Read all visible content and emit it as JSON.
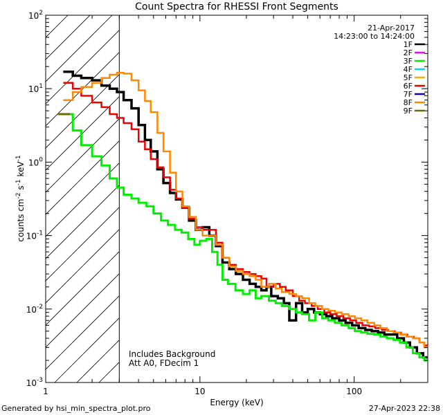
{
  "chart_data": {
    "type": "line",
    "title": "Count Spectra for RHESSI Front Segments",
    "xlabel": "Energy (keV)",
    "ylabel_parts": {
      "a": "counts cm",
      "b": "-2",
      "c": " s",
      "d": "-1",
      "e": " keV",
      "f": "-1"
    },
    "xscale": "log",
    "yscale": "log",
    "xlim": [
      1,
      300
    ],
    "ylim": [
      0.001,
      100
    ],
    "x_ticks": [
      {
        "value": 1,
        "label": "1"
      },
      {
        "value": 10,
        "label": "10"
      },
      {
        "value": 100,
        "label": "100"
      }
    ],
    "y_ticks": [
      {
        "value": 100,
        "base": "10",
        "exp": "2"
      },
      {
        "value": 10,
        "base": "10",
        "exp": "1"
      },
      {
        "value": 1,
        "base": "10",
        "exp": "0"
      },
      {
        "value": 0.1,
        "base": "10",
        "exp": "-1"
      },
      {
        "value": 0.01,
        "base": "10",
        "exp": "-2"
      },
      {
        "value": 0.001,
        "base": "10",
        "exp": "-3"
      }
    ],
    "date": "21-Apr-2017",
    "time_range": "14:23:00 to 14:24:00",
    "threshold_energy_keV": 3,
    "hatched_region_keV": [
      1,
      3
    ],
    "annotations": [
      "Includes Background",
      "Att A0, FDecim 1"
    ],
    "legend_position": "top-right",
    "series": [
      {
        "name": "1F",
        "color": "#000000",
        "shown": true,
        "stroke": 3.5,
        "points": [
          [
            1.3,
            17
          ],
          [
            1.5,
            15
          ],
          [
            1.7,
            14
          ],
          [
            2.0,
            13
          ],
          [
            2.3,
            11
          ],
          [
            2.6,
            10
          ],
          [
            2.9,
            9
          ],
          [
            3.2,
            7
          ],
          [
            3.6,
            5.4
          ],
          [
            4.0,
            3.2
          ],
          [
            4.4,
            2.0
          ],
          [
            4.8,
            1.4
          ],
          [
            5.3,
            0.8
          ],
          [
            5.8,
            0.52
          ],
          [
            6.4,
            0.38
          ],
          [
            7.0,
            0.31
          ],
          [
            7.7,
            0.24
          ],
          [
            8.5,
            0.16
          ],
          [
            9.4,
            0.12
          ],
          [
            10.4,
            0.13
          ],
          [
            11.5,
            0.1
          ],
          [
            12.7,
            0.072
          ],
          [
            14.0,
            0.043
          ],
          [
            15.5,
            0.035
          ],
          [
            17.1,
            0.03
          ],
          [
            19.0,
            0.025
          ],
          [
            21,
            0.022
          ],
          [
            23,
            0.02
          ],
          [
            25,
            0.018
          ],
          [
            27,
            0.02
          ],
          [
            29,
            0.015
          ],
          [
            32,
            0.014
          ],
          [
            35,
            0.012
          ],
          [
            38,
            0.007
          ],
          [
            42,
            0.012
          ],
          [
            46,
            0.009
          ],
          [
            50,
            0.01
          ],
          [
            55,
            0.009
          ],
          [
            60,
            0.0085
          ],
          [
            66,
            0.008
          ],
          [
            72,
            0.0075
          ],
          [
            80,
            0.007
          ],
          [
            88,
            0.0065
          ],
          [
            97,
            0.006
          ],
          [
            107,
            0.0055
          ],
          [
            118,
            0.0052
          ],
          [
            130,
            0.005
          ],
          [
            143,
            0.0048
          ],
          [
            157,
            0.0045
          ],
          [
            173,
            0.0045
          ],
          [
            190,
            0.004
          ],
          [
            210,
            0.0035
          ],
          [
            230,
            0.003
          ],
          [
            255,
            0.0025
          ],
          [
            280,
            0.0022
          ]
        ]
      },
      {
        "name": "2F",
        "color": "#ff00ff",
        "shown": false,
        "stroke": 2.5,
        "points": []
      },
      {
        "name": "3F",
        "color": "#00ee00",
        "shown": true,
        "stroke": 3,
        "points": [
          [
            1.3,
            4.5
          ],
          [
            1.5,
            2.7
          ],
          [
            1.7,
            1.7
          ],
          [
            2.0,
            1.2
          ],
          [
            2.3,
            0.9
          ],
          [
            2.6,
            0.6
          ],
          [
            2.9,
            0.45
          ],
          [
            3.2,
            0.36
          ],
          [
            3.6,
            0.32
          ],
          [
            4.0,
            0.28
          ],
          [
            4.5,
            0.25
          ],
          [
            5.0,
            0.2
          ],
          [
            5.6,
            0.16
          ],
          [
            6.2,
            0.14
          ],
          [
            6.9,
            0.12
          ],
          [
            7.6,
            0.11
          ],
          [
            8.4,
            0.09
          ],
          [
            9.2,
            0.075
          ],
          [
            10.0,
            0.085
          ],
          [
            11.0,
            0.09
          ],
          [
            12.0,
            0.06
          ],
          [
            13.0,
            0.04
          ],
          [
            14.0,
            0.025
          ],
          [
            15.2,
            0.022
          ],
          [
            17,
            0.018
          ],
          [
            19,
            0.016
          ],
          [
            21,
            0.018
          ],
          [
            23,
            0.014
          ],
          [
            25,
            0.015
          ],
          [
            28,
            0.013
          ],
          [
            31,
            0.012
          ],
          [
            34,
            0.011
          ],
          [
            38,
            0.01
          ],
          [
            42,
            0.009
          ],
          [
            46,
            0.0085
          ],
          [
            51,
            0.007
          ],
          [
            56,
            0.009
          ],
          [
            62,
            0.0075
          ],
          [
            68,
            0.007
          ],
          [
            75,
            0.0065
          ],
          [
            83,
            0.006
          ],
          [
            92,
            0.0055
          ],
          [
            101,
            0.005
          ],
          [
            111,
            0.0048
          ],
          [
            122,
            0.0046
          ],
          [
            135,
            0.0045
          ],
          [
            148,
            0.0042
          ],
          [
            163,
            0.004
          ],
          [
            180,
            0.0038
          ],
          [
            198,
            0.0035
          ],
          [
            218,
            0.003
          ],
          [
            240,
            0.0025
          ],
          [
            265,
            0.0022
          ],
          [
            285,
            0.002
          ]
        ]
      },
      {
        "name": "4F",
        "color": "#00dddd",
        "shown": false,
        "stroke": 2.5,
        "points": []
      },
      {
        "name": "5F",
        "color": "#ffaa00",
        "shown": false,
        "stroke": 2.5,
        "points": []
      },
      {
        "name": "6F",
        "color": "#ee0000",
        "shown": true,
        "stroke": 2.5,
        "points": [
          [
            1.3,
            12
          ],
          [
            1.5,
            10
          ],
          [
            1.7,
            8
          ],
          [
            2.0,
            6.5
          ],
          [
            2.3,
            5.6
          ],
          [
            2.6,
            4.5
          ],
          [
            2.9,
            4
          ],
          [
            3.2,
            3.4
          ],
          [
            3.6,
            2.8
          ],
          [
            4.0,
            1.9
          ],
          [
            4.4,
            1.5
          ],
          [
            4.8,
            1.1
          ],
          [
            5.3,
            0.85
          ],
          [
            5.8,
            0.62
          ],
          [
            6.4,
            0.42
          ],
          [
            7.0,
            0.32
          ],
          [
            7.7,
            0.24
          ],
          [
            8.5,
            0.17
          ],
          [
            9.4,
            0.13
          ],
          [
            10.4,
            0.12
          ],
          [
            11.5,
            0.12
          ],
          [
            12.7,
            0.08
          ],
          [
            14.0,
            0.05
          ],
          [
            15.5,
            0.04
          ],
          [
            17.1,
            0.035
          ],
          [
            19.0,
            0.032
          ],
          [
            21,
            0.03
          ],
          [
            23,
            0.028
          ],
          [
            25,
            0.026
          ],
          [
            27,
            0.02
          ],
          [
            30,
            0.022
          ],
          [
            33,
            0.02
          ],
          [
            36,
            0.018
          ],
          [
            40,
            0.015
          ],
          [
            44,
            0.013
          ],
          [
            48,
            0.012
          ],
          [
            53,
            0.011
          ],
          [
            58,
            0.01
          ],
          [
            64,
            0.009
          ],
          [
            70,
            0.0085
          ],
          [
            77,
            0.008
          ],
          [
            85,
            0.0075
          ],
          [
            94,
            0.007
          ],
          [
            103,
            0.0065
          ],
          [
            113,
            0.006
          ],
          [
            125,
            0.0058
          ],
          [
            137,
            0.0055
          ],
          [
            151,
            0.0052
          ],
          [
            166,
            0.005
          ],
          [
            183,
            0.0048
          ],
          [
            201,
            0.0045
          ],
          [
            221,
            0.0042
          ],
          [
            243,
            0.004
          ],
          [
            265,
            0.0035
          ],
          [
            285,
            0.0032
          ]
        ]
      },
      {
        "name": "7F",
        "color": "#0000cc",
        "shown": false,
        "stroke": 2.5,
        "points": []
      },
      {
        "name": "8F",
        "color": "#ff8800",
        "shown": true,
        "stroke": 2.5,
        "points": [
          [
            1.3,
            7
          ],
          [
            1.5,
            9
          ],
          [
            1.7,
            10.5
          ],
          [
            2.0,
            12
          ],
          [
            2.3,
            14
          ],
          [
            2.6,
            15.5
          ],
          [
            2.9,
            16.5
          ],
          [
            3.2,
            16
          ],
          [
            3.6,
            13
          ],
          [
            4.0,
            9.5
          ],
          [
            4.4,
            6.8
          ],
          [
            4.8,
            4.8
          ],
          [
            5.3,
            2.5
          ],
          [
            5.8,
            1.4
          ],
          [
            6.4,
            0.72
          ],
          [
            7.0,
            0.4
          ],
          [
            7.7,
            0.25
          ],
          [
            8.5,
            0.18
          ],
          [
            9.4,
            0.12
          ],
          [
            10.4,
            0.1
          ],
          [
            11.5,
            0.1
          ],
          [
            12.7,
            0.075
          ],
          [
            14.0,
            0.05
          ],
          [
            15.5,
            0.038
          ],
          [
            17.1,
            0.033
          ],
          [
            19.0,
            0.03
          ],
          [
            21,
            0.028
          ],
          [
            23,
            0.025
          ],
          [
            25,
            0.02
          ],
          [
            28,
            0.022
          ],
          [
            31,
            0.019
          ],
          [
            34,
            0.017
          ],
          [
            38,
            0.016
          ],
          [
            42,
            0.015
          ],
          [
            46,
            0.014
          ],
          [
            51,
            0.012
          ],
          [
            56,
            0.011
          ],
          [
            62,
            0.01
          ],
          [
            68,
            0.0095
          ],
          [
            75,
            0.009
          ],
          [
            83,
            0.0085
          ],
          [
            92,
            0.008
          ],
          [
            101,
            0.0075
          ],
          [
            111,
            0.007
          ],
          [
            122,
            0.0065
          ],
          [
            135,
            0.006
          ],
          [
            148,
            0.0055
          ],
          [
            163,
            0.005
          ],
          [
            180,
            0.0048
          ],
          [
            198,
            0.0045
          ],
          [
            218,
            0.0042
          ],
          [
            240,
            0.004
          ],
          [
            265,
            0.0035
          ],
          [
            285,
            0.003
          ]
        ]
      },
      {
        "name": "9F",
        "color": "#6b6b00",
        "shown": true,
        "stroke": 3,
        "points": [
          [
            1.2,
            4.5
          ],
          [
            1.35,
            4.5
          ]
        ]
      }
    ]
  },
  "footer": {
    "generated_by": "Generated by hsi_min_spectra_plot.pro",
    "timestamp": "27-Apr-2023 22:38"
  }
}
